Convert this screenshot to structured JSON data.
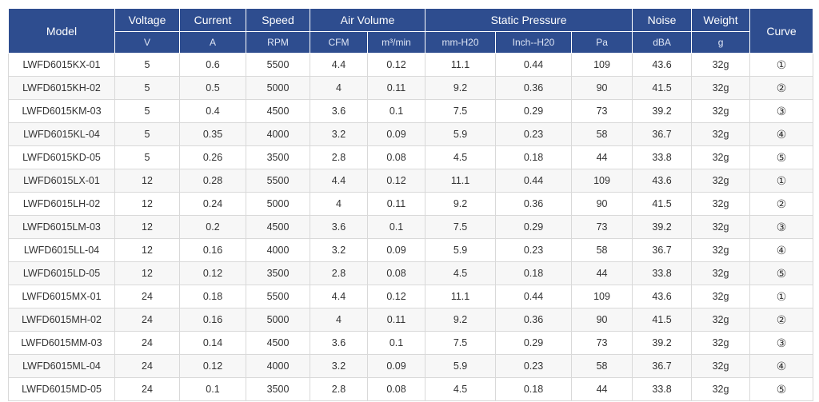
{
  "table": {
    "headers": {
      "model": "Model",
      "voltage": "Voltage",
      "current": "Current",
      "speed": "Speed",
      "air_volume": "Air Volume",
      "static_pressure": "Static Pressure",
      "noise": "Noise",
      "weight": "Weight",
      "curve": "Curve"
    },
    "units": {
      "voltage": "V",
      "current": "A",
      "speed": "RPM",
      "cfm": "CFM",
      "m3min": "m³/min",
      "mmh2o": "mm-H20",
      "inchh2o": "Inch--H20",
      "pa": "Pa",
      "dba": "dBA",
      "g": "g"
    },
    "rows": [
      [
        "LWFD6015KX-01",
        "5",
        "0.6",
        "5500",
        "4.4",
        "0.12",
        "11.1",
        "0.44",
        "109",
        "43.6",
        "32g",
        "①"
      ],
      [
        "LWFD6015KH-02",
        "5",
        "0.5",
        "5000",
        "4",
        "0.11",
        "9.2",
        "0.36",
        "90",
        "41.5",
        "32g",
        "②"
      ],
      [
        "LWFD6015KM-03",
        "5",
        "0.4",
        "4500",
        "3.6",
        "0.1",
        "7.5",
        "0.29",
        "73",
        "39.2",
        "32g",
        "③"
      ],
      [
        "LWFD6015KL-04",
        "5",
        "0.35",
        "4000",
        "3.2",
        "0.09",
        "5.9",
        "0.23",
        "58",
        "36.7",
        "32g",
        "④"
      ],
      [
        "LWFD6015KD-05",
        "5",
        "0.26",
        "3500",
        "2.8",
        "0.08",
        "4.5",
        "0.18",
        "44",
        "33.8",
        "32g",
        "⑤"
      ],
      [
        "LWFD6015LX-01",
        "12",
        "0.28",
        "5500",
        "4.4",
        "0.12",
        "11.1",
        "0.44",
        "109",
        "43.6",
        "32g",
        "①"
      ],
      [
        "LWFD6015LH-02",
        "12",
        "0.24",
        "5000",
        "4",
        "0.11",
        "9.2",
        "0.36",
        "90",
        "41.5",
        "32g",
        "②"
      ],
      [
        "LWFD6015LM-03",
        "12",
        "0.2",
        "4500",
        "3.6",
        "0.1",
        "7.5",
        "0.29",
        "73",
        "39.2",
        "32g",
        "③"
      ],
      [
        "LWFD6015LL-04",
        "12",
        "0.16",
        "4000",
        "3.2",
        "0.09",
        "5.9",
        "0.23",
        "58",
        "36.7",
        "32g",
        "④"
      ],
      [
        "LWFD6015LD-05",
        "12",
        "0.12",
        "3500",
        "2.8",
        "0.08",
        "4.5",
        "0.18",
        "44",
        "33.8",
        "32g",
        "⑤"
      ],
      [
        "LWFD6015MX-01",
        "24",
        "0.18",
        "5500",
        "4.4",
        "0.12",
        "11.1",
        "0.44",
        "109",
        "43.6",
        "32g",
        "①"
      ],
      [
        "LWFD6015MH-02",
        "24",
        "0.16",
        "5000",
        "4",
        "0.11",
        "9.2",
        "0.36",
        "90",
        "41.5",
        "32g",
        "②"
      ],
      [
        "LWFD6015MM-03",
        "24",
        "0.14",
        "4500",
        "3.6",
        "0.1",
        "7.5",
        "0.29",
        "73",
        "39.2",
        "32g",
        "③"
      ],
      [
        "LWFD6015ML-04",
        "24",
        "0.12",
        "4000",
        "3.2",
        "0.09",
        "5.9",
        "0.23",
        "58",
        "36.7",
        "32g",
        "④"
      ],
      [
        "LWFD6015MD-05",
        "24",
        "0.1",
        "3500",
        "2.8",
        "0.08",
        "4.5",
        "0.18",
        "44",
        "33.8",
        "32g",
        "⑤"
      ]
    ]
  },
  "colors": {
    "header_bg": "#2e4d8f",
    "header_text": "#ffffff",
    "body_text": "#333333",
    "grid": "#d9d9d9"
  }
}
